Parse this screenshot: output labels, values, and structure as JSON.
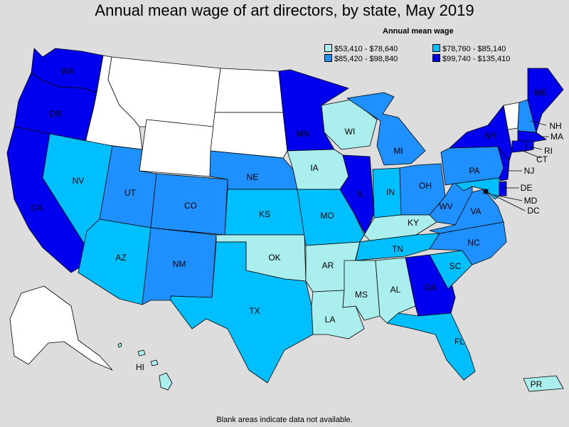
{
  "title": "Annual mean wage of art directors, by state, May 2019",
  "legend": {
    "title": "Annual mean wage",
    "items": [
      {
        "range": "$53,410 - $78,640",
        "color": "#aaeeee"
      },
      {
        "range": "$78,760 - $85,140",
        "color": "#00bfff"
      },
      {
        "range": "$85,420 - $98,840",
        "color": "#1e90ff"
      },
      {
        "range": "$99,740 - $135,410",
        "color": "#0000ee"
      }
    ]
  },
  "no_data_color": "#ffffff",
  "footnote": "Blank areas indicate data not available.",
  "states": [
    {
      "abbr": "WA",
      "bin": 3
    },
    {
      "abbr": "OR",
      "bin": 3
    },
    {
      "abbr": "CA",
      "bin": 3
    },
    {
      "abbr": "ID",
      "bin": null
    },
    {
      "abbr": "NV",
      "bin": 1
    },
    {
      "abbr": "MT",
      "bin": null
    },
    {
      "abbr": "WY",
      "bin": null
    },
    {
      "abbr": "UT",
      "bin": 2
    },
    {
      "abbr": "AZ",
      "bin": 1
    },
    {
      "abbr": "CO",
      "bin": 2
    },
    {
      "abbr": "NM",
      "bin": 2
    },
    {
      "abbr": "ND",
      "bin": null
    },
    {
      "abbr": "SD",
      "bin": null
    },
    {
      "abbr": "NE",
      "bin": 2
    },
    {
      "abbr": "KS",
      "bin": 1
    },
    {
      "abbr": "OK",
      "bin": 0
    },
    {
      "abbr": "TX",
      "bin": 1
    },
    {
      "abbr": "MN",
      "bin": 3
    },
    {
      "abbr": "IA",
      "bin": 0
    },
    {
      "abbr": "MO",
      "bin": 1
    },
    {
      "abbr": "AR",
      "bin": 0
    },
    {
      "abbr": "LA",
      "bin": 0
    },
    {
      "abbr": "WI",
      "bin": 0
    },
    {
      "abbr": "IL",
      "bin": 3
    },
    {
      "abbr": "MI",
      "bin": 2
    },
    {
      "abbr": "IN",
      "bin": 1
    },
    {
      "abbr": "OH",
      "bin": 2
    },
    {
      "abbr": "KY",
      "bin": 0
    },
    {
      "abbr": "TN",
      "bin": 1
    },
    {
      "abbr": "MS",
      "bin": 0
    },
    {
      "abbr": "AL",
      "bin": 0
    },
    {
      "abbr": "GA",
      "bin": 3
    },
    {
      "abbr": "FL",
      "bin": 1
    },
    {
      "abbr": "SC",
      "bin": 1
    },
    {
      "abbr": "NC",
      "bin": 2
    },
    {
      "abbr": "VA",
      "bin": 2
    },
    {
      "abbr": "WV",
      "bin": 2
    },
    {
      "abbr": "PA",
      "bin": 2
    },
    {
      "abbr": "NY",
      "bin": 3
    },
    {
      "abbr": "NJ",
      "bin": 3
    },
    {
      "abbr": "DE",
      "bin": 3
    },
    {
      "abbr": "MD",
      "bin": 1
    },
    {
      "abbr": "DC",
      "bin": 1
    },
    {
      "abbr": "CT",
      "bin": 3
    },
    {
      "abbr": "RI",
      "bin": 3
    },
    {
      "abbr": "MA",
      "bin": 3
    },
    {
      "abbr": "VT",
      "bin": null
    },
    {
      "abbr": "NH",
      "bin": 2
    },
    {
      "abbr": "ME",
      "bin": 3
    },
    {
      "abbr": "AK",
      "bin": null
    },
    {
      "abbr": "HI",
      "bin": 0
    },
    {
      "abbr": "PR",
      "bin": 0
    }
  ]
}
